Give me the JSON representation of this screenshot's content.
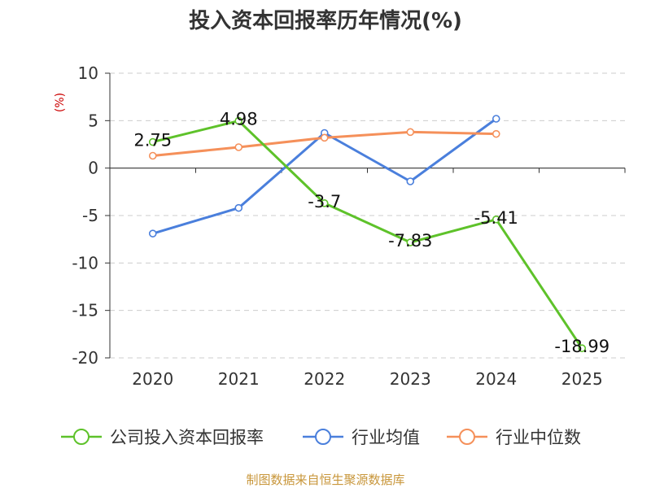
{
  "chart_data": {
    "type": "line",
    "title": "投入资本回报率历年情况(%)",
    "ylabel": "(%)",
    "categories": [
      "2020",
      "2021",
      "2022",
      "2023",
      "2024",
      "2025"
    ],
    "ylim": [
      -20,
      10
    ],
    "yticks": [
      "10",
      "5",
      "0",
      "-5",
      "-10",
      "-15",
      "-20"
    ],
    "grid": true,
    "legend_position": "bottom",
    "series": [
      {
        "name": "公司投入资本回报率",
        "color": "#5ec22a",
        "values": [
          2.75,
          4.98,
          -3.7,
          -7.83,
          -5.41,
          -18.99
        ],
        "labels": [
          "2.75",
          "4.98",
          "-3.7",
          "-7.83",
          "-5.41",
          "-18.99"
        ]
      },
      {
        "name": "行业均值",
        "color": "#4a7fdc",
        "values": [
          -6.9,
          -4.2,
          3.7,
          -1.4,
          5.2,
          null
        ],
        "labels": []
      },
      {
        "name": "行业中位数",
        "color": "#f5905a",
        "values": [
          1.3,
          2.2,
          3.2,
          3.8,
          3.6,
          null
        ],
        "labels": []
      }
    ]
  },
  "source": "制图数据来自恒生聚源数据库"
}
